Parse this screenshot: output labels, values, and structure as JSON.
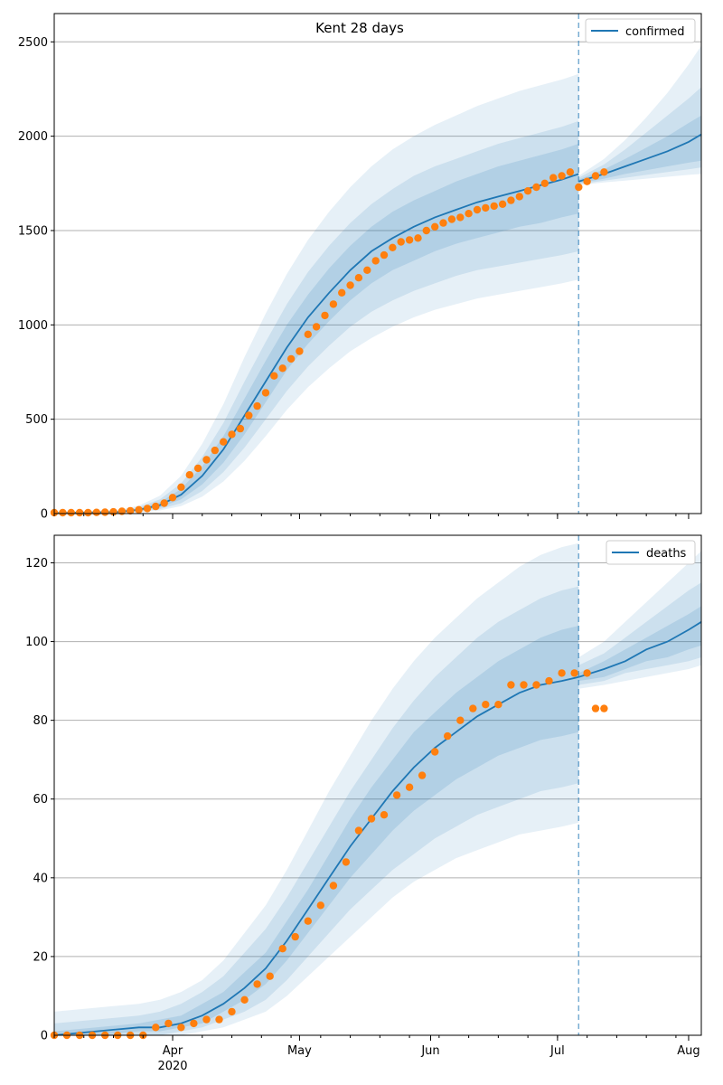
{
  "chart_data": [
    {
      "type": "line",
      "title": "Kent 28 days",
      "series_name": "confirmed",
      "ylim": [
        0,
        2650
      ],
      "yticks": [
        0,
        500,
        1000,
        1500,
        2000,
        2500
      ],
      "xlim": [
        0,
        153
      ],
      "cutoff_day": 124,
      "grid": true,
      "legend": "top-right",
      "colors": {
        "line": "#1f77b4",
        "band": "#1f77b4",
        "points": "#ff7f0e",
        "grid": "#b0b0b0"
      },
      "model": {
        "x": [
          0,
          15,
          20,
          25,
          30,
          35,
          40,
          45,
          50,
          55,
          60,
          65,
          70,
          75,
          80,
          85,
          90,
          95,
          100,
          105,
          110,
          115,
          120,
          124
        ],
        "mean": [
          3,
          8,
          20,
          45,
          100,
          200,
          340,
          520,
          700,
          880,
          1040,
          1170,
          1290,
          1390,
          1460,
          1520,
          1570,
          1610,
          1650,
          1680,
          1710,
          1740,
          1770,
          1800
        ],
        "band_inner": [
          [
            2,
            4
          ],
          [
            5,
            11
          ],
          [
            14,
            27
          ],
          [
            32,
            60
          ],
          [
            75,
            130
          ],
          [
            155,
            250
          ],
          [
            270,
            410
          ],
          [
            420,
            610
          ],
          [
            590,
            810
          ],
          [
            760,
            1000
          ],
          [
            900,
            1160
          ],
          [
            1020,
            1300
          ],
          [
            1130,
            1420
          ],
          [
            1220,
            1520
          ],
          [
            1290,
            1600
          ],
          [
            1340,
            1660
          ],
          [
            1390,
            1710
          ],
          [
            1430,
            1760
          ],
          [
            1460,
            1800
          ],
          [
            1490,
            1840
          ],
          [
            1520,
            1870
          ],
          [
            1540,
            1900
          ],
          [
            1570,
            1930
          ],
          [
            1590,
            1960
          ]
        ],
        "band_mid": [
          [
            1,
            5
          ],
          [
            3,
            14
          ],
          [
            10,
            34
          ],
          [
            24,
            75
          ],
          [
            55,
            160
          ],
          [
            120,
            300
          ],
          [
            220,
            480
          ],
          [
            350,
            700
          ],
          [
            500,
            910
          ],
          [
            650,
            1110
          ],
          [
            780,
            1280
          ],
          [
            890,
            1420
          ],
          [
            990,
            1540
          ],
          [
            1070,
            1640
          ],
          [
            1130,
            1720
          ],
          [
            1180,
            1790
          ],
          [
            1220,
            1840
          ],
          [
            1260,
            1880
          ],
          [
            1290,
            1920
          ],
          [
            1310,
            1960
          ],
          [
            1330,
            1990
          ],
          [
            1350,
            2020
          ],
          [
            1370,
            2050
          ],
          [
            1390,
            2080
          ]
        ],
        "band_outer": [
          [
            0,
            6
          ],
          [
            2,
            18
          ],
          [
            6,
            42
          ],
          [
            17,
            95
          ],
          [
            40,
            200
          ],
          [
            90,
            370
          ],
          [
            170,
            580
          ],
          [
            280,
            830
          ],
          [
            410,
            1060
          ],
          [
            550,
            1270
          ],
          [
            670,
            1450
          ],
          [
            770,
            1600
          ],
          [
            860,
            1730
          ],
          [
            930,
            1840
          ],
          [
            990,
            1930
          ],
          [
            1040,
            2000
          ],
          [
            1080,
            2060
          ],
          [
            1110,
            2110
          ],
          [
            1140,
            2160
          ],
          [
            1160,
            2200
          ],
          [
            1180,
            2240
          ],
          [
            1200,
            2270
          ],
          [
            1220,
            2300
          ],
          [
            1240,
            2330
          ]
        ]
      },
      "forecast": {
        "x": [
          124,
          130,
          135,
          140,
          145,
          150,
          153
        ],
        "mean": [
          1760,
          1800,
          1840,
          1880,
          1920,
          1970,
          2010
        ],
        "band_inner": [
          [
            1750,
            1770
          ],
          [
            1775,
            1825
          ],
          [
            1800,
            1880
          ],
          [
            1820,
            1940
          ],
          [
            1840,
            2000
          ],
          [
            1860,
            2070
          ],
          [
            1870,
            2110
          ]
        ],
        "band_mid": [
          [
            1745,
            1780
          ],
          [
            1765,
            1850
          ],
          [
            1780,
            1930
          ],
          [
            1795,
            2020
          ],
          [
            1810,
            2110
          ],
          [
            1825,
            2200
          ],
          [
            1835,
            2260
          ]
        ],
        "band_outer": [
          [
            1740,
            1790
          ],
          [
            1755,
            1880
          ],
          [
            1765,
            1980
          ],
          [
            1775,
            2100
          ],
          [
            1785,
            2230
          ],
          [
            1795,
            2380
          ],
          [
            1800,
            2480
          ]
        ]
      },
      "observed": {
        "x": [
          0,
          2,
          4,
          6,
          8,
          10,
          12,
          14,
          16,
          18,
          20,
          22,
          24,
          26,
          28,
          30,
          32,
          34,
          36,
          38,
          40,
          42,
          44,
          46,
          48,
          50,
          52,
          54,
          56,
          58,
          60,
          62,
          64,
          66,
          68,
          70,
          72,
          74,
          76,
          78,
          80,
          82,
          84,
          86,
          88,
          90,
          92,
          94,
          96,
          98,
          100,
          102,
          104,
          106,
          108,
          110,
          112,
          114,
          116,
          118,
          120,
          122,
          124,
          126,
          128,
          130
        ],
        "y": [
          5,
          5,
          5,
          5,
          5,
          6,
          7,
          9,
          12,
          15,
          20,
          27,
          38,
          55,
          85,
          140,
          205,
          240,
          285,
          335,
          380,
          420,
          450,
          520,
          570,
          640,
          730,
          770,
          820,
          860,
          950,
          990,
          1050,
          1110,
          1170,
          1210,
          1250,
          1290,
          1340,
          1370,
          1410,
          1440,
          1450,
          1460,
          1500,
          1520,
          1540,
          1560,
          1570,
          1590,
          1610,
          1620,
          1630,
          1640,
          1660,
          1680,
          1710,
          1730,
          1750,
          1780,
          1790,
          1810,
          1730,
          1760,
          1790,
          1810
        ]
      },
      "xticks": []
    },
    {
      "type": "line",
      "title": "",
      "series_name": "deaths",
      "ylim": [
        0,
        127
      ],
      "yticks": [
        0,
        20,
        40,
        60,
        80,
        100,
        120
      ],
      "xlim": [
        0,
        153
      ],
      "cutoff_day": 124,
      "grid": true,
      "legend": "top-right",
      "colors": {
        "line": "#1f77b4",
        "band": "#1f77b4",
        "points": "#ff7f0e",
        "grid": "#b0b0b0"
      },
      "model": {
        "x": [
          0,
          10,
          20,
          25,
          30,
          35,
          40,
          45,
          50,
          55,
          60,
          65,
          70,
          75,
          80,
          85,
          90,
          95,
          100,
          105,
          110,
          115,
          120,
          124
        ],
        "mean": [
          0,
          1,
          2,
          2,
          3,
          5,
          8,
          12,
          17,
          24,
          32,
          40,
          48,
          55,
          62,
          68,
          73,
          77,
          81,
          84,
          87,
          89,
          90,
          91
        ],
        "band_inner": [
          [
            0,
            1
          ],
          [
            0,
            2
          ],
          [
            1,
            3
          ],
          [
            1,
            4
          ],
          [
            2,
            5
          ],
          [
            3,
            8
          ],
          [
            6,
            11
          ],
          [
            9,
            16
          ],
          [
            13,
            21
          ],
          [
            19,
            29
          ],
          [
            26,
            37
          ],
          [
            33,
            46
          ],
          [
            40,
            55
          ],
          [
            46,
            63
          ],
          [
            52,
            70
          ],
          [
            57,
            77
          ],
          [
            61,
            82
          ],
          [
            65,
            87
          ],
          [
            68,
            91
          ],
          [
            71,
            95
          ],
          [
            73,
            98
          ],
          [
            75,
            101
          ],
          [
            76,
            103
          ],
          [
            77,
            104
          ]
        ],
        "band_mid": [
          [
            0,
            3
          ],
          [
            0,
            4
          ],
          [
            0,
            5
          ],
          [
            0,
            6
          ],
          [
            1,
            8
          ],
          [
            2,
            11
          ],
          [
            4,
            15
          ],
          [
            6,
            21
          ],
          [
            9,
            27
          ],
          [
            14,
            35
          ],
          [
            20,
            44
          ],
          [
            26,
            53
          ],
          [
            32,
            62
          ],
          [
            37,
            70
          ],
          [
            42,
            78
          ],
          [
            46,
            85
          ],
          [
            50,
            91
          ],
          [
            53,
            96
          ],
          [
            56,
            101
          ],
          [
            58,
            105
          ],
          [
            60,
            108
          ],
          [
            62,
            111
          ],
          [
            63,
            113
          ],
          [
            64,
            114
          ]
        ],
        "band_outer": [
          [
            0,
            6
          ],
          [
            0,
            7
          ],
          [
            0,
            8
          ],
          [
            0,
            9
          ],
          [
            0,
            11
          ],
          [
            1,
            14
          ],
          [
            2,
            19
          ],
          [
            4,
            26
          ],
          [
            6,
            33
          ],
          [
            10,
            42
          ],
          [
            15,
            52
          ],
          [
            20,
            62
          ],
          [
            25,
            71
          ],
          [
            30,
            80
          ],
          [
            35,
            88
          ],
          [
            39,
            95
          ],
          [
            42,
            101
          ],
          [
            45,
            106
          ],
          [
            47,
            111
          ],
          [
            49,
            115
          ],
          [
            51,
            119
          ],
          [
            52,
            122
          ],
          [
            53,
            124
          ],
          [
            54,
            125
          ]
        ]
      },
      "forecast": {
        "x": [
          124,
          130,
          135,
          140,
          145,
          150,
          153
        ],
        "mean": [
          91,
          93,
          95,
          98,
          100,
          103,
          105
        ],
        "band_inner": [
          [
            90,
            92
          ],
          [
            91,
            95
          ],
          [
            93,
            98
          ],
          [
            95,
            101
          ],
          [
            96,
            104
          ],
          [
            98,
            107
          ],
          [
            99,
            109
          ]
        ],
        "band_mid": [
          [
            89,
            94
          ],
          [
            90,
            97
          ],
          [
            92,
            101
          ],
          [
            93,
            105
          ],
          [
            94,
            109
          ],
          [
            95,
            113
          ],
          [
            96,
            115
          ]
        ],
        "band_outer": [
          [
            88,
            96
          ],
          [
            89,
            100
          ],
          [
            90,
            105
          ],
          [
            91,
            110
          ],
          [
            92,
            115
          ],
          [
            93,
            120
          ],
          [
            94,
            123
          ]
        ]
      },
      "observed": {
        "x": [
          0,
          3,
          6,
          9,
          12,
          15,
          18,
          21,
          24,
          27,
          30,
          33,
          36,
          39,
          42,
          45,
          48,
          51,
          54,
          57,
          60,
          63,
          66,
          69,
          72,
          75,
          78,
          81,
          84,
          87,
          90,
          93,
          96,
          99,
          102,
          105,
          108,
          111,
          114,
          117,
          120,
          123,
          126,
          128,
          130
        ],
        "y": [
          0,
          0,
          0,
          0,
          0,
          0,
          0,
          0,
          2,
          3,
          2,
          3,
          4,
          4,
          6,
          9,
          13,
          15,
          22,
          25,
          29,
          33,
          38,
          44,
          52,
          55,
          56,
          61,
          63,
          66,
          72,
          76,
          80,
          83,
          84,
          84,
          89,
          89,
          89,
          90,
          92,
          92,
          92,
          83,
          83
        ]
      },
      "xticks": [
        {
          "day": 28,
          "label": "Apr",
          "sub": "2020"
        },
        {
          "day": 58,
          "label": "May",
          "sub": ""
        },
        {
          "day": 89,
          "label": "Jun",
          "sub": ""
        },
        {
          "day": 119,
          "label": "Jul",
          "sub": ""
        },
        {
          "day": 150,
          "label": "Aug",
          "sub": ""
        }
      ]
    }
  ]
}
